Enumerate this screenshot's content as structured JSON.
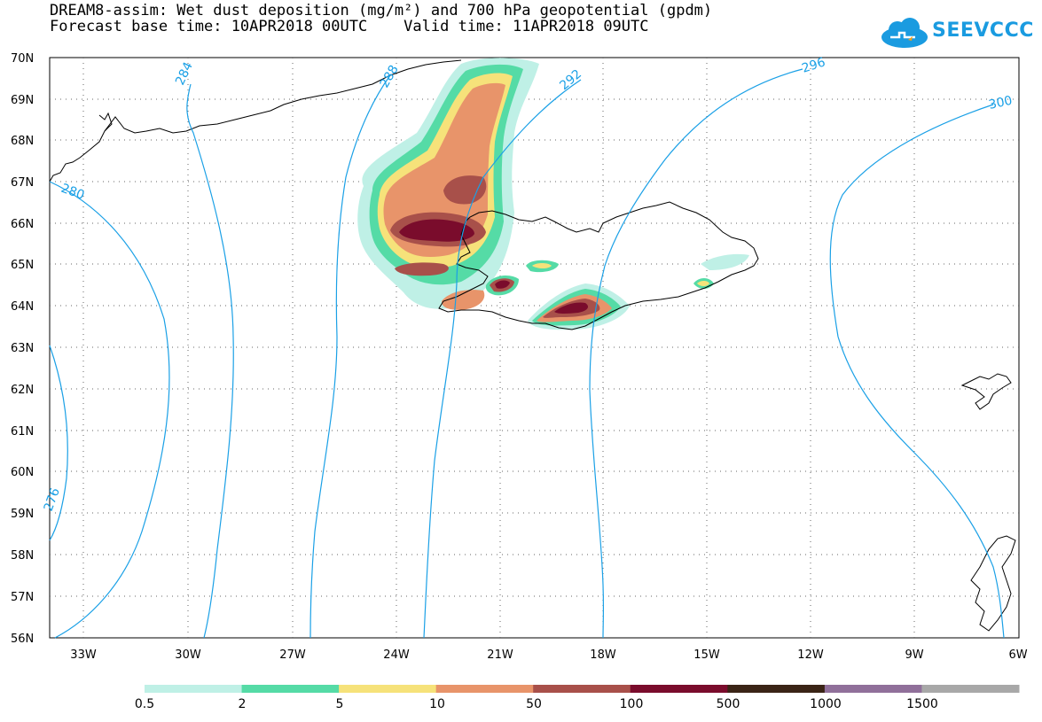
{
  "header": {
    "line1": "DREAM8-assim: Wet dust deposition (mg/m²) and 700 hPa geopotential (gpdm)",
    "line2": "Forecast base time: 10APR2018 00UTC    Valid time: 11APR2018 09UTC"
  },
  "logo": {
    "text": "SEEVCCC",
    "color": "#1a9be0"
  },
  "map": {
    "lat_labels": [
      "70N",
      "69N",
      "68N",
      "67N",
      "66N",
      "65N",
      "64N",
      "63N",
      "62N",
      "61N",
      "60N",
      "59N",
      "58N",
      "57N",
      "56N"
    ],
    "lon_labels": [
      "33W",
      "30W",
      "27W",
      "24W",
      "21W",
      "18W",
      "15W",
      "12W",
      "9W",
      "6W"
    ],
    "contour_labels": [
      "284",
      "288",
      "292",
      "296",
      "300",
      "280",
      "276"
    ],
    "contour_color": "#1aa0e6"
  },
  "colorbar": {
    "labels": [
      "0.5",
      "2",
      "5",
      "10",
      "50",
      "100",
      "500",
      "1000",
      "1500"
    ],
    "colors": [
      "#bff0e6",
      "#55dba6",
      "#f6e27a",
      "#e8946a",
      "#a8504a",
      "#7a0c2c",
      "#3a2416",
      "#90709a",
      "#a8a8a8"
    ]
  }
}
